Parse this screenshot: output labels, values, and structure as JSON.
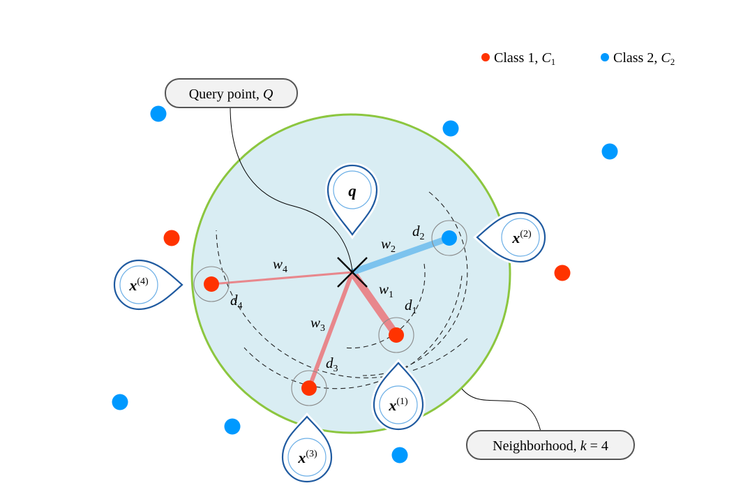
{
  "legend": {
    "class1": {
      "label": "Class 1, ",
      "symbol": "C",
      "sub": "1",
      "color": "#ff3300"
    },
    "class2": {
      "label": "Class 2, ",
      "symbol": "C",
      "sub": "2",
      "color": "#0099ff"
    }
  },
  "callouts": {
    "query": {
      "text": "Query point, ",
      "symbol": "Q"
    },
    "neighborhood": {
      "text": "Neighborhood, ",
      "symbol": "k",
      "eq": " = 4"
    }
  },
  "pins": {
    "q": {
      "label": "q"
    },
    "x1": {
      "base": "x",
      "sup": "(1)"
    },
    "x2": {
      "base": "x",
      "sup": "(2)"
    },
    "x3": {
      "base": "x",
      "sup": "(3)"
    },
    "x4": {
      "base": "x",
      "sup": "(4)"
    }
  },
  "distance_labels": {
    "d1": {
      "base": "d",
      "sub": "1"
    },
    "d2": {
      "base": "d",
      "sub": "2"
    },
    "d3": {
      "base": "d",
      "sub": "3"
    },
    "d4": {
      "base": "d",
      "sub": "4"
    }
  },
  "weight_labels": {
    "w1": {
      "base": "w",
      "sub": "1"
    },
    "w2": {
      "base": "w",
      "sub": "2"
    },
    "w3": {
      "base": "w",
      "sub": "3"
    },
    "w4": {
      "base": "w",
      "sub": "4"
    }
  },
  "colors": {
    "neighborhood_fill": "#d9edf3",
    "neighborhood_stroke": "#8cc63f",
    "pin_stroke": "#1f5aa0",
    "pin_ring": "#6aaee6",
    "red_line": "#e8878c",
    "blue_line": "#7cc3ee",
    "callout_fill": "#f2f2f2",
    "callout_stroke": "#555555"
  }
}
